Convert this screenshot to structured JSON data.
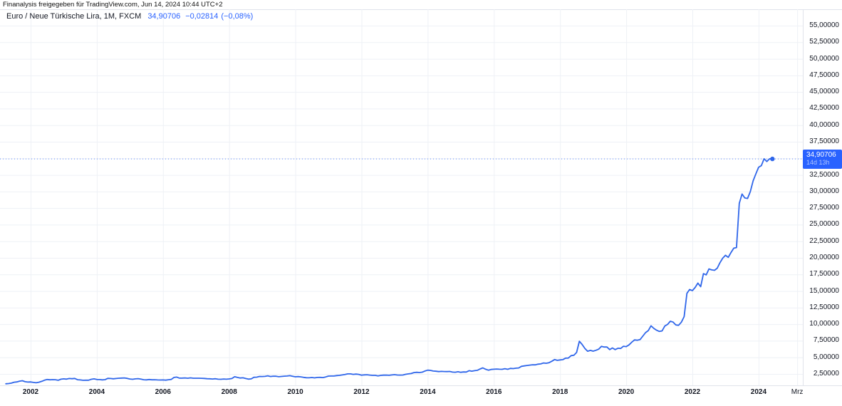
{
  "page": {
    "copyright": "Finanalysis freigegeben für TradingView.com, Jun 14, 2024 10:44 UTC+2"
  },
  "legend": {
    "title": "Euro / Neue Türkische Lira, 1M, FXCM",
    "last_price": "34,90706",
    "change_abs": "−0,02814",
    "change_pct": "(−0,08%)"
  },
  "price_label": {
    "price": "34,90706",
    "countdown": "14d 13h"
  },
  "colors": {
    "accent_blue": "#2962FF",
    "line_blue": "#2F66EA",
    "grid": "#EEF1F6",
    "border": "#E0E3EB",
    "text_dark": "#131722"
  },
  "chart_data": {
    "type": "line",
    "title": "Euro / Neue Türkische Lira, 1M, FXCM",
    "symbol": "EUR/TRY",
    "interval": "1M",
    "exchange": "FXCM",
    "last_value": 34.90706,
    "grid": true,
    "legend_position": "top-left",
    "xlabel": "",
    "ylabel": "",
    "x_start_year": 2001.25,
    "x_step_years": 0.0833333,
    "xlim": [
      2001.07,
      2026.5
    ],
    "ylim": [
      0.78,
      57.5
    ],
    "y_grid": {
      "min": 2.5,
      "max": 55,
      "step": 2.5
    },
    "values": [
      1.02,
      1.05,
      1.12,
      1.25,
      1.3,
      1.42,
      1.48,
      1.33,
      1.28,
      1.3,
      1.22,
      1.17,
      1.25,
      1.38,
      1.55,
      1.66,
      1.62,
      1.64,
      1.63,
      1.54,
      1.71,
      1.76,
      1.72,
      1.81,
      1.78,
      1.82,
      1.63,
      1.6,
      1.54,
      1.56,
      1.55,
      1.7,
      1.76,
      1.66,
      1.65,
      1.61,
      1.64,
      1.83,
      1.81,
      1.77,
      1.81,
      1.86,
      1.88,
      1.9,
      1.83,
      1.74,
      1.7,
      1.76,
      1.79,
      1.72,
      1.63,
      1.61,
      1.66,
      1.62,
      1.63,
      1.6,
      1.59,
      1.6,
      1.57,
      1.63,
      1.67,
      1.97,
      2.03,
      1.87,
      1.88,
      1.9,
      1.86,
      1.91,
      1.86,
      1.86,
      1.86,
      1.85,
      1.82,
      1.78,
      1.77,
      1.74,
      1.78,
      1.71,
      1.69,
      1.74,
      1.71,
      1.75,
      1.81,
      2.08,
      1.97,
      1.89,
      1.92,
      1.81,
      1.72,
      1.76,
      2.0,
      2.02,
      2.12,
      2.11,
      2.13,
      2.22,
      2.11,
      2.17,
      2.16,
      2.08,
      2.12,
      2.17,
      2.19,
      2.24,
      2.16,
      2.07,
      2.1,
      2.06,
      1.99,
      1.93,
      1.92,
      1.96,
      1.91,
      1.97,
      1.99,
      1.95,
      2.05,
      2.18,
      2.19,
      2.19,
      2.25,
      2.28,
      2.35,
      2.43,
      2.51,
      2.51,
      2.44,
      2.48,
      2.44,
      2.32,
      2.36,
      2.38,
      2.33,
      2.28,
      2.28,
      2.21,
      2.29,
      2.32,
      2.33,
      2.3,
      2.35,
      2.39,
      2.34,
      2.33,
      2.34,
      2.45,
      2.51,
      2.56,
      2.7,
      2.75,
      2.71,
      2.77,
      2.94,
      3.07,
      3.04,
      2.94,
      2.91,
      2.85,
      2.89,
      2.86,
      2.85,
      2.88,
      2.78,
      2.76,
      2.83,
      2.75,
      2.8,
      2.79,
      2.99,
      2.92,
      2.99,
      3.05,
      3.25,
      3.41,
      3.21,
      3.07,
      3.18,
      3.21,
      3.24,
      3.21,
      3.2,
      3.29,
      3.2,
      3.34,
      3.3,
      3.37,
      3.4,
      3.65,
      3.71,
      3.78,
      3.83,
      3.88,
      3.87,
      3.97,
      4.01,
      4.15,
      4.11,
      4.2,
      4.41,
      4.67,
      4.55,
      4.61,
      4.66,
      4.88,
      4.89,
      5.26,
      5.32,
      5.73,
      7.43,
      6.95,
      6.35,
      5.93,
      6.05,
      5.94,
      6.06,
      6.24,
      6.67,
      6.56,
      6.56,
      6.17,
      6.42,
      6.17,
      6.38,
      6.34,
      6.68,
      6.62,
      6.88,
      7.28,
      7.63,
      7.59,
      7.68,
      8.19,
      8.73,
      9.04,
      9.76,
      9.37,
      9.09,
      8.91,
      8.99,
      9.73,
      9.97,
      10.44,
      10.32,
      9.89,
      9.83,
      10.3,
      11.14,
      14.65,
      15.23,
      15.06,
      15.54,
      16.2,
      15.65,
      17.62,
      17.43,
      18.33,
      18.19,
      18.12,
      18.43,
      19.27,
      19.96,
      20.39,
      20.07,
      20.81,
      21.46,
      21.55,
      28.21,
      29.62,
      29.03,
      28.95,
      29.98,
      31.59,
      32.64,
      33.65,
      33.9,
      34.93,
      34.52,
      34.93,
      34.91
    ],
    "y_ticks": [
      {
        "v": 55,
        "label": "55,00000"
      },
      {
        "v": 52.5,
        "label": "52,50000"
      },
      {
        "v": 50,
        "label": "50,00000"
      },
      {
        "v": 47.5,
        "label": "47,50000"
      },
      {
        "v": 45,
        "label": "45,00000"
      },
      {
        "v": 42.5,
        "label": "42,50000"
      },
      {
        "v": 40,
        "label": "40,00000"
      },
      {
        "v": 37.5,
        "label": "37,50000"
      },
      {
        "v": 32.5,
        "label": "32,50000"
      },
      {
        "v": 30,
        "label": "30,00000"
      },
      {
        "v": 27.5,
        "label": "27,50000"
      },
      {
        "v": 25,
        "label": "25,00000"
      },
      {
        "v": 22.5,
        "label": "22,50000"
      },
      {
        "v": 20,
        "label": "20,00000"
      },
      {
        "v": 17.5,
        "label": "17,50000"
      },
      {
        "v": 15,
        "label": "15,00000"
      },
      {
        "v": 12.5,
        "label": "12,50000"
      },
      {
        "v": 10,
        "label": "10,00000"
      },
      {
        "v": 7.5,
        "label": "7,50000"
      },
      {
        "v": 5,
        "label": "5,00000"
      },
      {
        "v": 2.5,
        "label": "2,50000"
      }
    ],
    "x_ticks": [
      {
        "t": 2002,
        "label": "2002",
        "major": true
      },
      {
        "t": 2004,
        "label": "2004",
        "major": true
      },
      {
        "t": 2006,
        "label": "2006",
        "major": true
      },
      {
        "t": 2008,
        "label": "2008",
        "major": true
      },
      {
        "t": 2010,
        "label": "2010",
        "major": true
      },
      {
        "t": 2012,
        "label": "2012",
        "major": true
      },
      {
        "t": 2014,
        "label": "2014",
        "major": true
      },
      {
        "t": 2016,
        "label": "2016",
        "major": true
      },
      {
        "t": 2018,
        "label": "2018",
        "major": true
      },
      {
        "t": 2020,
        "label": "2020",
        "major": true
      },
      {
        "t": 2022,
        "label": "2022",
        "major": true
      },
      {
        "t": 2024,
        "label": "2024",
        "major": true
      },
      {
        "t": 2025.167,
        "label": "Mrz",
        "major": false
      }
    ]
  }
}
